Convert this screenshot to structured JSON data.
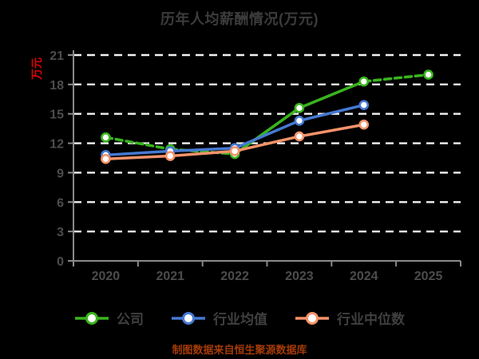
{
  "title": "历年人均薪酬情况(万元)",
  "y_axis_name": "万元",
  "footer": "制图数据来自恒生聚源数据库",
  "colors": {
    "background": "#000000",
    "title_text": "#3c3c3c",
    "axis_line": "#8a8a8a",
    "tick_label": "#4c4c4c",
    "grid_line": "#f2f2f2",
    "y_axis_name": "#e00000",
    "footer_text": "#a43b06",
    "legend_label": "#3f3f3f",
    "marker_fill": "#ffffff"
  },
  "chart_data": {
    "type": "line",
    "title": "历年人均薪酬情况(万元)",
    "ylabel": "万元",
    "categories": [
      "2020",
      "2021",
      "2022",
      "2023",
      "2024",
      "2025"
    ],
    "yticks": [
      0,
      3,
      6,
      9,
      12,
      15,
      18,
      21
    ],
    "ylim": [
      0,
      21
    ],
    "grid": "horizontal-dashed",
    "legend_position": "bottom",
    "series": [
      {
        "name": "公司",
        "color": "#3ab41e",
        "values": [
          12.6,
          11.4,
          10.9,
          15.6,
          18.3,
          19.0
        ],
        "dashed_segments": [
          true,
          true,
          false,
          false,
          true
        ]
      },
      {
        "name": "行业均值",
        "color": "#4679d2",
        "values": [
          10.8,
          11.2,
          11.5,
          14.3,
          15.9,
          null
        ],
        "dashed_segments": [
          false,
          false,
          false,
          false,
          false
        ]
      },
      {
        "name": "行业中位数",
        "color": "#f7936a",
        "values": [
          10.4,
          10.7,
          11.2,
          12.7,
          13.9,
          null
        ],
        "dashed_segments": [
          false,
          false,
          false,
          false,
          false
        ]
      }
    ]
  }
}
